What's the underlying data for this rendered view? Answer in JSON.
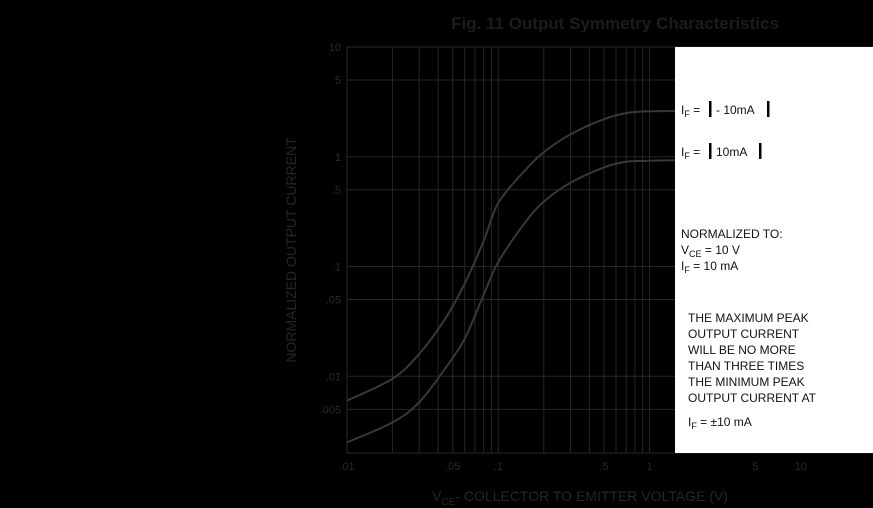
{
  "chart_data": {
    "type": "line",
    "title": "Fig. 11  Output Symmetry Characteristics",
    "xlabel": {
      "main": "V",
      "sub": "CE",
      "rest": "- COLLECTOR TO EMITTER VOLTAGE (V)"
    },
    "ylabel": "NORMALIZED OUTPUT CURRENT",
    "x_scale": "log",
    "y_scale": "log",
    "xlim": [
      0.01,
      30
    ],
    "ylim": [
      0.002,
      10
    ],
    "x_ticks": [
      {
        "value": 0.01,
        "label": ".01"
      },
      {
        "value": 0.05,
        "label": ".05"
      },
      {
        "value": 0.1,
        "label": ".1"
      },
      {
        "value": 0.5,
        "label": ".5"
      },
      {
        "value": 1,
        "label": "1"
      },
      {
        "value": 5,
        "label": "5"
      },
      {
        "value": 10,
        "label": "10"
      }
    ],
    "y_ticks": [
      {
        "value": 10,
        "label": "10"
      },
      {
        "value": 5,
        "label": "5"
      },
      {
        "value": 1,
        "label": "1"
      },
      {
        "value": 0.5,
        "label": ".5"
      },
      {
        "value": 0.1,
        "label": ".1"
      },
      {
        "value": 0.05,
        "label": ".05"
      },
      {
        "value": 0.01,
        "label": ".01"
      },
      {
        "value": 0.005,
        "label": ".005"
      }
    ],
    "x_grid": [
      0.02,
      0.03,
      0.04,
      0.05,
      0.06,
      0.07,
      0.08,
      0.09,
      0.1,
      0.2,
      0.3,
      0.4,
      0.5,
      0.6,
      0.7,
      0.8,
      0.9,
      1,
      2,
      3,
      4,
      5,
      6,
      7,
      8,
      9,
      10,
      20
    ],
    "y_grid": [
      5,
      1,
      0.5,
      0.1,
      0.05,
      0.01,
      0.005
    ],
    "grid": true,
    "series": [
      {
        "name": "I_F = | - 10mA |",
        "x": [
          0.01,
          0.02,
          0.03,
          0.045,
          0.06,
          0.08,
          0.1,
          0.15,
          0.2,
          0.3,
          0.5,
          0.7,
          1,
          2,
          5,
          10,
          30
        ],
        "y": [
          0.006,
          0.0095,
          0.016,
          0.034,
          0.07,
          0.17,
          0.38,
          0.75,
          1.1,
          1.6,
          2.2,
          2.5,
          2.6,
          2.6,
          2.6,
          2.6,
          2.6
        ]
      },
      {
        "name": "I_F = | 10mA |",
        "x": [
          0.01,
          0.02,
          0.03,
          0.045,
          0.06,
          0.08,
          0.1,
          0.15,
          0.2,
          0.3,
          0.5,
          0.7,
          1,
          2,
          5,
          10,
          30
        ],
        "y": [
          0.0025,
          0.0038,
          0.0058,
          0.012,
          0.022,
          0.055,
          0.11,
          0.25,
          0.39,
          0.58,
          0.8,
          0.9,
          0.92,
          0.94,
          0.95,
          0.95,
          0.96
        ]
      }
    ],
    "series_labels": [
      {
        "prefix": "I",
        "sub": "F",
        "eq": " = ",
        "value": "- 10mA"
      },
      {
        "prefix": "I",
        "sub": "F",
        "eq": " = ",
        "value": "10mA"
      }
    ],
    "annotations": {
      "normalized_title": "NORMALIZED TO:",
      "norm_vce": {
        "prefix": "V",
        "sub": "CE",
        "rest": " = 10 V"
      },
      "norm_if": {
        "prefix": "I",
        "sub": "F",
        "rest": " = 10 mA"
      },
      "note_lines": [
        "THE MAXIMUM PEAK",
        "OUTPUT CURRENT",
        "WILL BE NO MORE",
        "THAN THREE TIMES",
        "THE MINIMUM PEAK",
        "OUTPUT CURRENT AT"
      ],
      "note_last": {
        "prefix": "I",
        "sub": "F",
        "rest": " = ±10 mA"
      }
    },
    "colors": {
      "background": "#000000",
      "curve": "#3b3731",
      "panel": "#ffffff"
    }
  }
}
